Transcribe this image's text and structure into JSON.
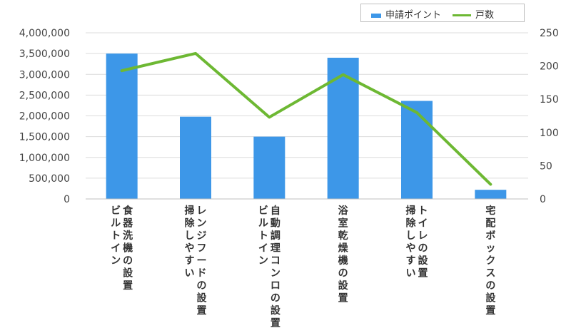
{
  "chart_data": {
    "type": "bar",
    "categories": [
      [
        "ビルトイン",
        "食器洗機の設置"
      ],
      [
        "掃除しやすい",
        "レンジフードの設置"
      ],
      [
        "ビルトイン",
        "自動調理コンロの設置"
      ],
      [
        "浴室乾燥機の設置"
      ],
      [
        "掃除しやすい",
        "トイレの設置"
      ],
      [
        "宅配ボックスの設置"
      ]
    ],
    "series": [
      {
        "name": "申請ポイント",
        "type": "bar",
        "axis": "left",
        "color": "#3d97e8",
        "values": [
          3500000,
          1980000,
          1500000,
          3400000,
          2360000,
          220000
        ]
      },
      {
        "name": "戸数",
        "type": "line",
        "axis": "right",
        "color": "#6db833",
        "values": [
          193,
          219,
          123,
          187,
          130,
          22
        ]
      }
    ],
    "y_left": {
      "min": 0,
      "max": 4000000,
      "step": 500000,
      "tick_labels": [
        "0",
        "500,000",
        "1,000,000",
        "1,500,000",
        "2,000,000",
        "2,500,000",
        "3,000,000",
        "3,500,000",
        "4,000,000"
      ]
    },
    "y_right": {
      "min": 0,
      "max": 250,
      "step": 50,
      "tick_labels": [
        "0",
        "50",
        "100",
        "150",
        "200",
        "250"
      ]
    },
    "grid": true,
    "legend_position": "top-right"
  }
}
